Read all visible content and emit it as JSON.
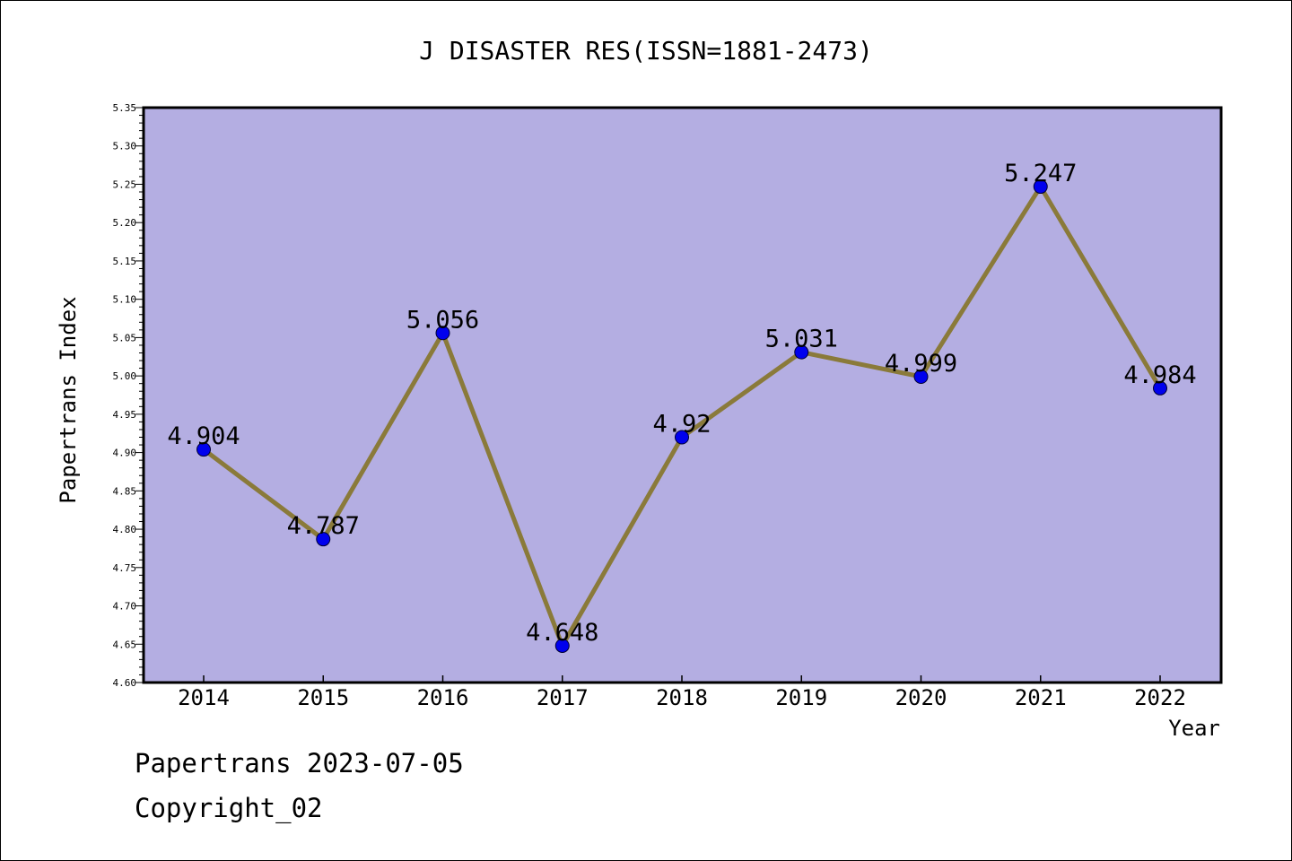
{
  "chart_data": {
    "type": "line",
    "title": "J DISASTER RES(ISSN=1881-2473)",
    "xlabel": "Year",
    "ylabel": "Papertrans Index",
    "categories": [
      "2014",
      "2015",
      "2016",
      "2017",
      "2018",
      "2019",
      "2020",
      "2021",
      "2022"
    ],
    "values": [
      4.904,
      4.787,
      5.056,
      4.648,
      4.92,
      5.031,
      4.999,
      5.247,
      4.984
    ],
    "data_labels": [
      "4.904",
      "4.787",
      "5.056",
      "4.648",
      "4.92",
      "5.031",
      "4.999",
      "5.247",
      "4.984"
    ],
    "ylim": [
      4.6,
      5.35
    ],
    "y_ticks": [
      "4.60",
      "4.65",
      "4.70",
      "4.75",
      "4.80",
      "4.85",
      "4.90",
      "4.95",
      "5.00",
      "5.05",
      "5.10",
      "5.15",
      "5.20",
      "5.25",
      "5.30",
      "5.35"
    ],
    "grid": false,
    "legend": "none",
    "colors": {
      "plot_background": "#b4aee2",
      "line": "#8a7a3a",
      "marker": "#0000ee"
    }
  },
  "footer": {
    "line1": "Papertrans 2023-07-05",
    "line2": "Copyright_02"
  }
}
